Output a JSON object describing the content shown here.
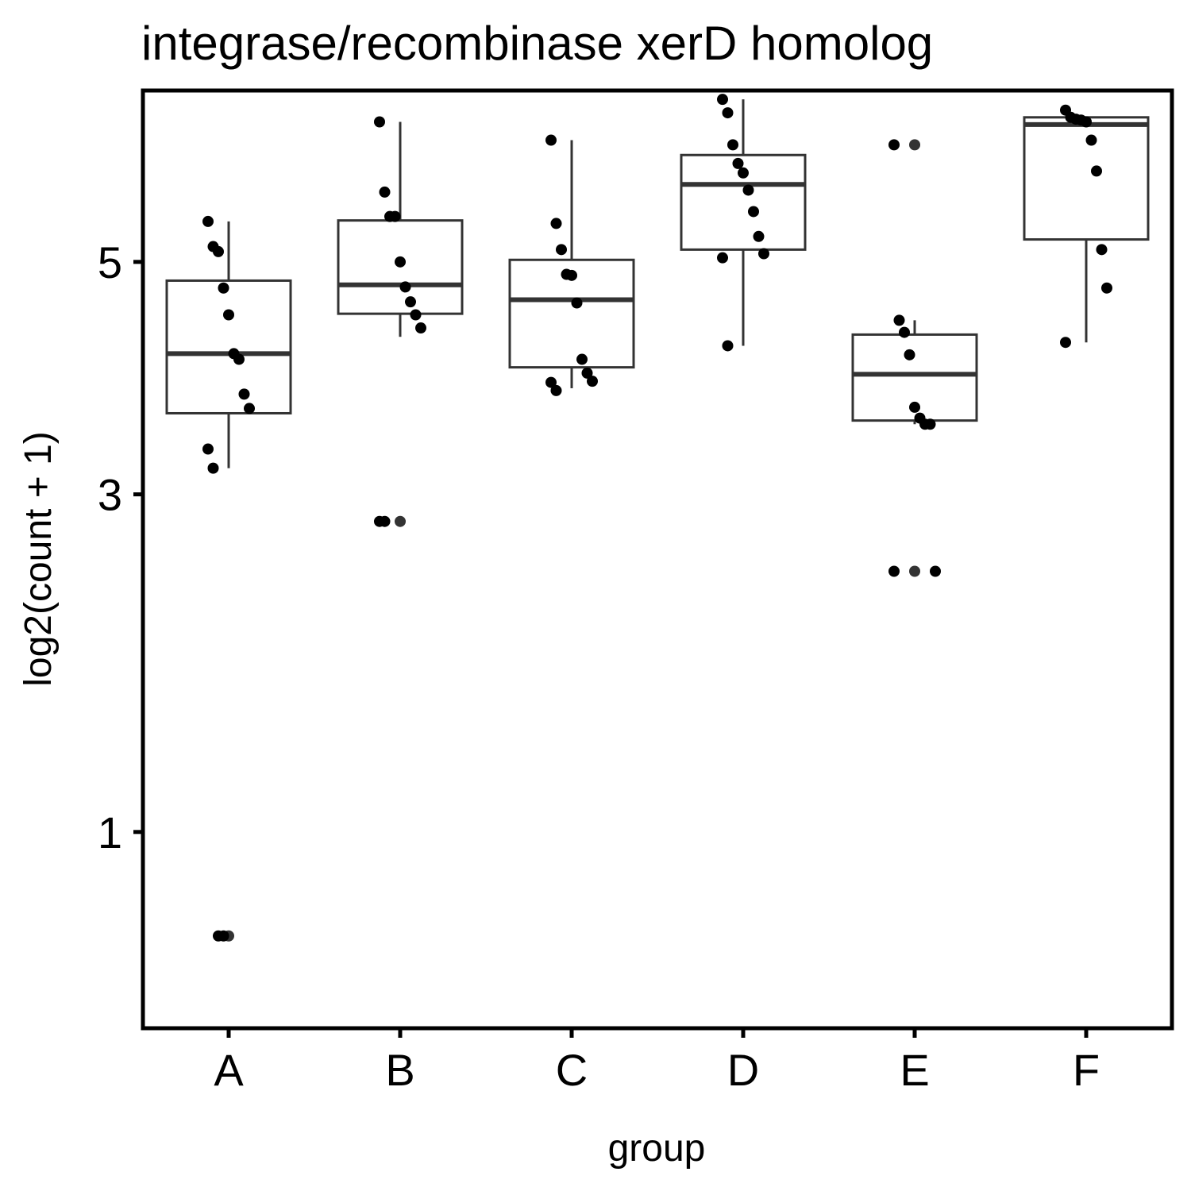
{
  "chart_data": {
    "type": "box",
    "title": "integrase/recombinase xerD homolog",
    "xlabel": "group",
    "ylabel": "log2(count + 1)",
    "y_scale": "sqrt",
    "ylim": [
      0.33,
      6.8
    ],
    "yticks": [
      "1",
      "3",
      "5"
    ],
    "grid": false,
    "legend": "none",
    "categories": [
      "A",
      "B",
      "C",
      "D",
      "E",
      "F"
    ],
    "boxes": [
      {
        "group": "A",
        "q1": 3.64,
        "median": 4.15,
        "q3": 4.82,
        "whisker_low": 3.2,
        "whisker_high": 5.4,
        "outliers": [
          0.6
        ]
      },
      {
        "group": "B",
        "q1": 4.51,
        "median": 4.78,
        "q3": 5.41,
        "whisker_low": 4.3,
        "whisker_high": 6.45,
        "outliers": [
          2.8
        ]
      },
      {
        "group": "C",
        "q1": 4.03,
        "median": 4.64,
        "q3": 5.02,
        "whisker_low": 3.85,
        "whisker_high": 6.25,
        "outliers": []
      },
      {
        "group": "D",
        "q1": 5.12,
        "median": 5.78,
        "q3": 6.09,
        "whisker_low": 4.22,
        "whisker_high": 6.7,
        "outliers": []
      },
      {
        "group": "E",
        "q1": 3.58,
        "median": 3.97,
        "q3": 4.32,
        "whisker_low": 3.55,
        "whisker_high": 4.45,
        "outliers": [
          2.45,
          6.2
        ]
      },
      {
        "group": "F",
        "q1": 5.22,
        "median": 6.42,
        "q3": 6.5,
        "whisker_low": 4.25,
        "whisker_high": 6.5,
        "outliers": []
      }
    ],
    "points": [
      {
        "group": "A",
        "values": [
          5.4,
          5.15,
          5.1,
          4.75,
          4.5,
          4.15,
          4.1,
          3.8,
          3.68,
          3.35,
          3.2,
          0.6,
          0.6
        ]
      },
      {
        "group": "B",
        "values": [
          6.45,
          5.7,
          5.45,
          5.45,
          5.0,
          4.76,
          4.62,
          4.5,
          4.38,
          2.8,
          2.8
        ]
      },
      {
        "group": "C",
        "values": [
          6.25,
          5.38,
          5.12,
          4.88,
          4.87,
          4.61,
          4.1,
          3.98,
          3.91,
          3.9,
          3.83
        ]
      },
      {
        "group": "D",
        "values": [
          6.7,
          6.55,
          6.2,
          6.0,
          5.9,
          5.72,
          5.5,
          5.25,
          5.08,
          5.04,
          4.22
        ]
      },
      {
        "group": "E",
        "values": [
          6.2,
          4.45,
          4.34,
          4.14,
          3.69,
          3.6,
          3.55,
          3.55,
          2.45,
          2.45
        ]
      },
      {
        "group": "F",
        "values": [
          6.58,
          6.5,
          6.48,
          6.47,
          6.45,
          6.25,
          5.92,
          5.12,
          4.75,
          4.25
        ]
      }
    ]
  }
}
